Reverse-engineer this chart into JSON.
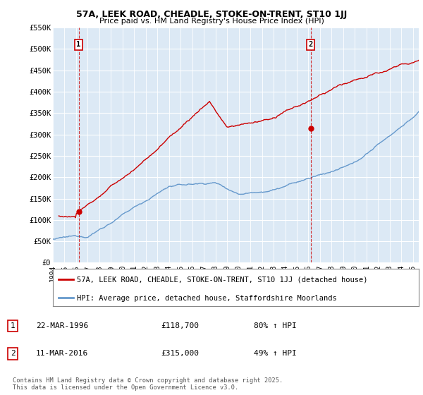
{
  "title1": "57A, LEEK ROAD, CHEADLE, STOKE-ON-TRENT, ST10 1JJ",
  "title2": "Price paid vs. HM Land Registry's House Price Index (HPI)",
  "ylim": [
    0,
    550000
  ],
  "yticks": [
    0,
    50000,
    100000,
    150000,
    200000,
    250000,
    300000,
    350000,
    400000,
    450000,
    500000,
    550000
  ],
  "ytick_labels": [
    "£0",
    "£50K",
    "£100K",
    "£150K",
    "£200K",
    "£250K",
    "£300K",
    "£350K",
    "£400K",
    "£450K",
    "£500K",
    "£550K"
  ],
  "hpi_color": "#6699cc",
  "price_color": "#cc0000",
  "marker1_date": 1996.22,
  "marker1_price": 118700,
  "marker2_date": 2016.19,
  "marker2_price": 315000,
  "legend_line1": "57A, LEEK ROAD, CHEADLE, STOKE-ON-TRENT, ST10 1JJ (detached house)",
  "legend_line2": "HPI: Average price, detached house, Staffordshire Moorlands",
  "note1_num": "1",
  "note1_date": "22-MAR-1996",
  "note1_price": "£118,700",
  "note1_hpi": "80% ↑ HPI",
  "note2_num": "2",
  "note2_date": "11-MAR-2016",
  "note2_price": "£315,000",
  "note2_hpi": "49% ↑ HPI",
  "copyright": "Contains HM Land Registry data © Crown copyright and database right 2025.\nThis data is licensed under the Open Government Licence v3.0.",
  "bg_color": "#ffffff",
  "plot_bg_color": "#dce9f5",
  "grid_color": "#ffffff",
  "xmin": 1994,
  "xmax": 2025.5
}
